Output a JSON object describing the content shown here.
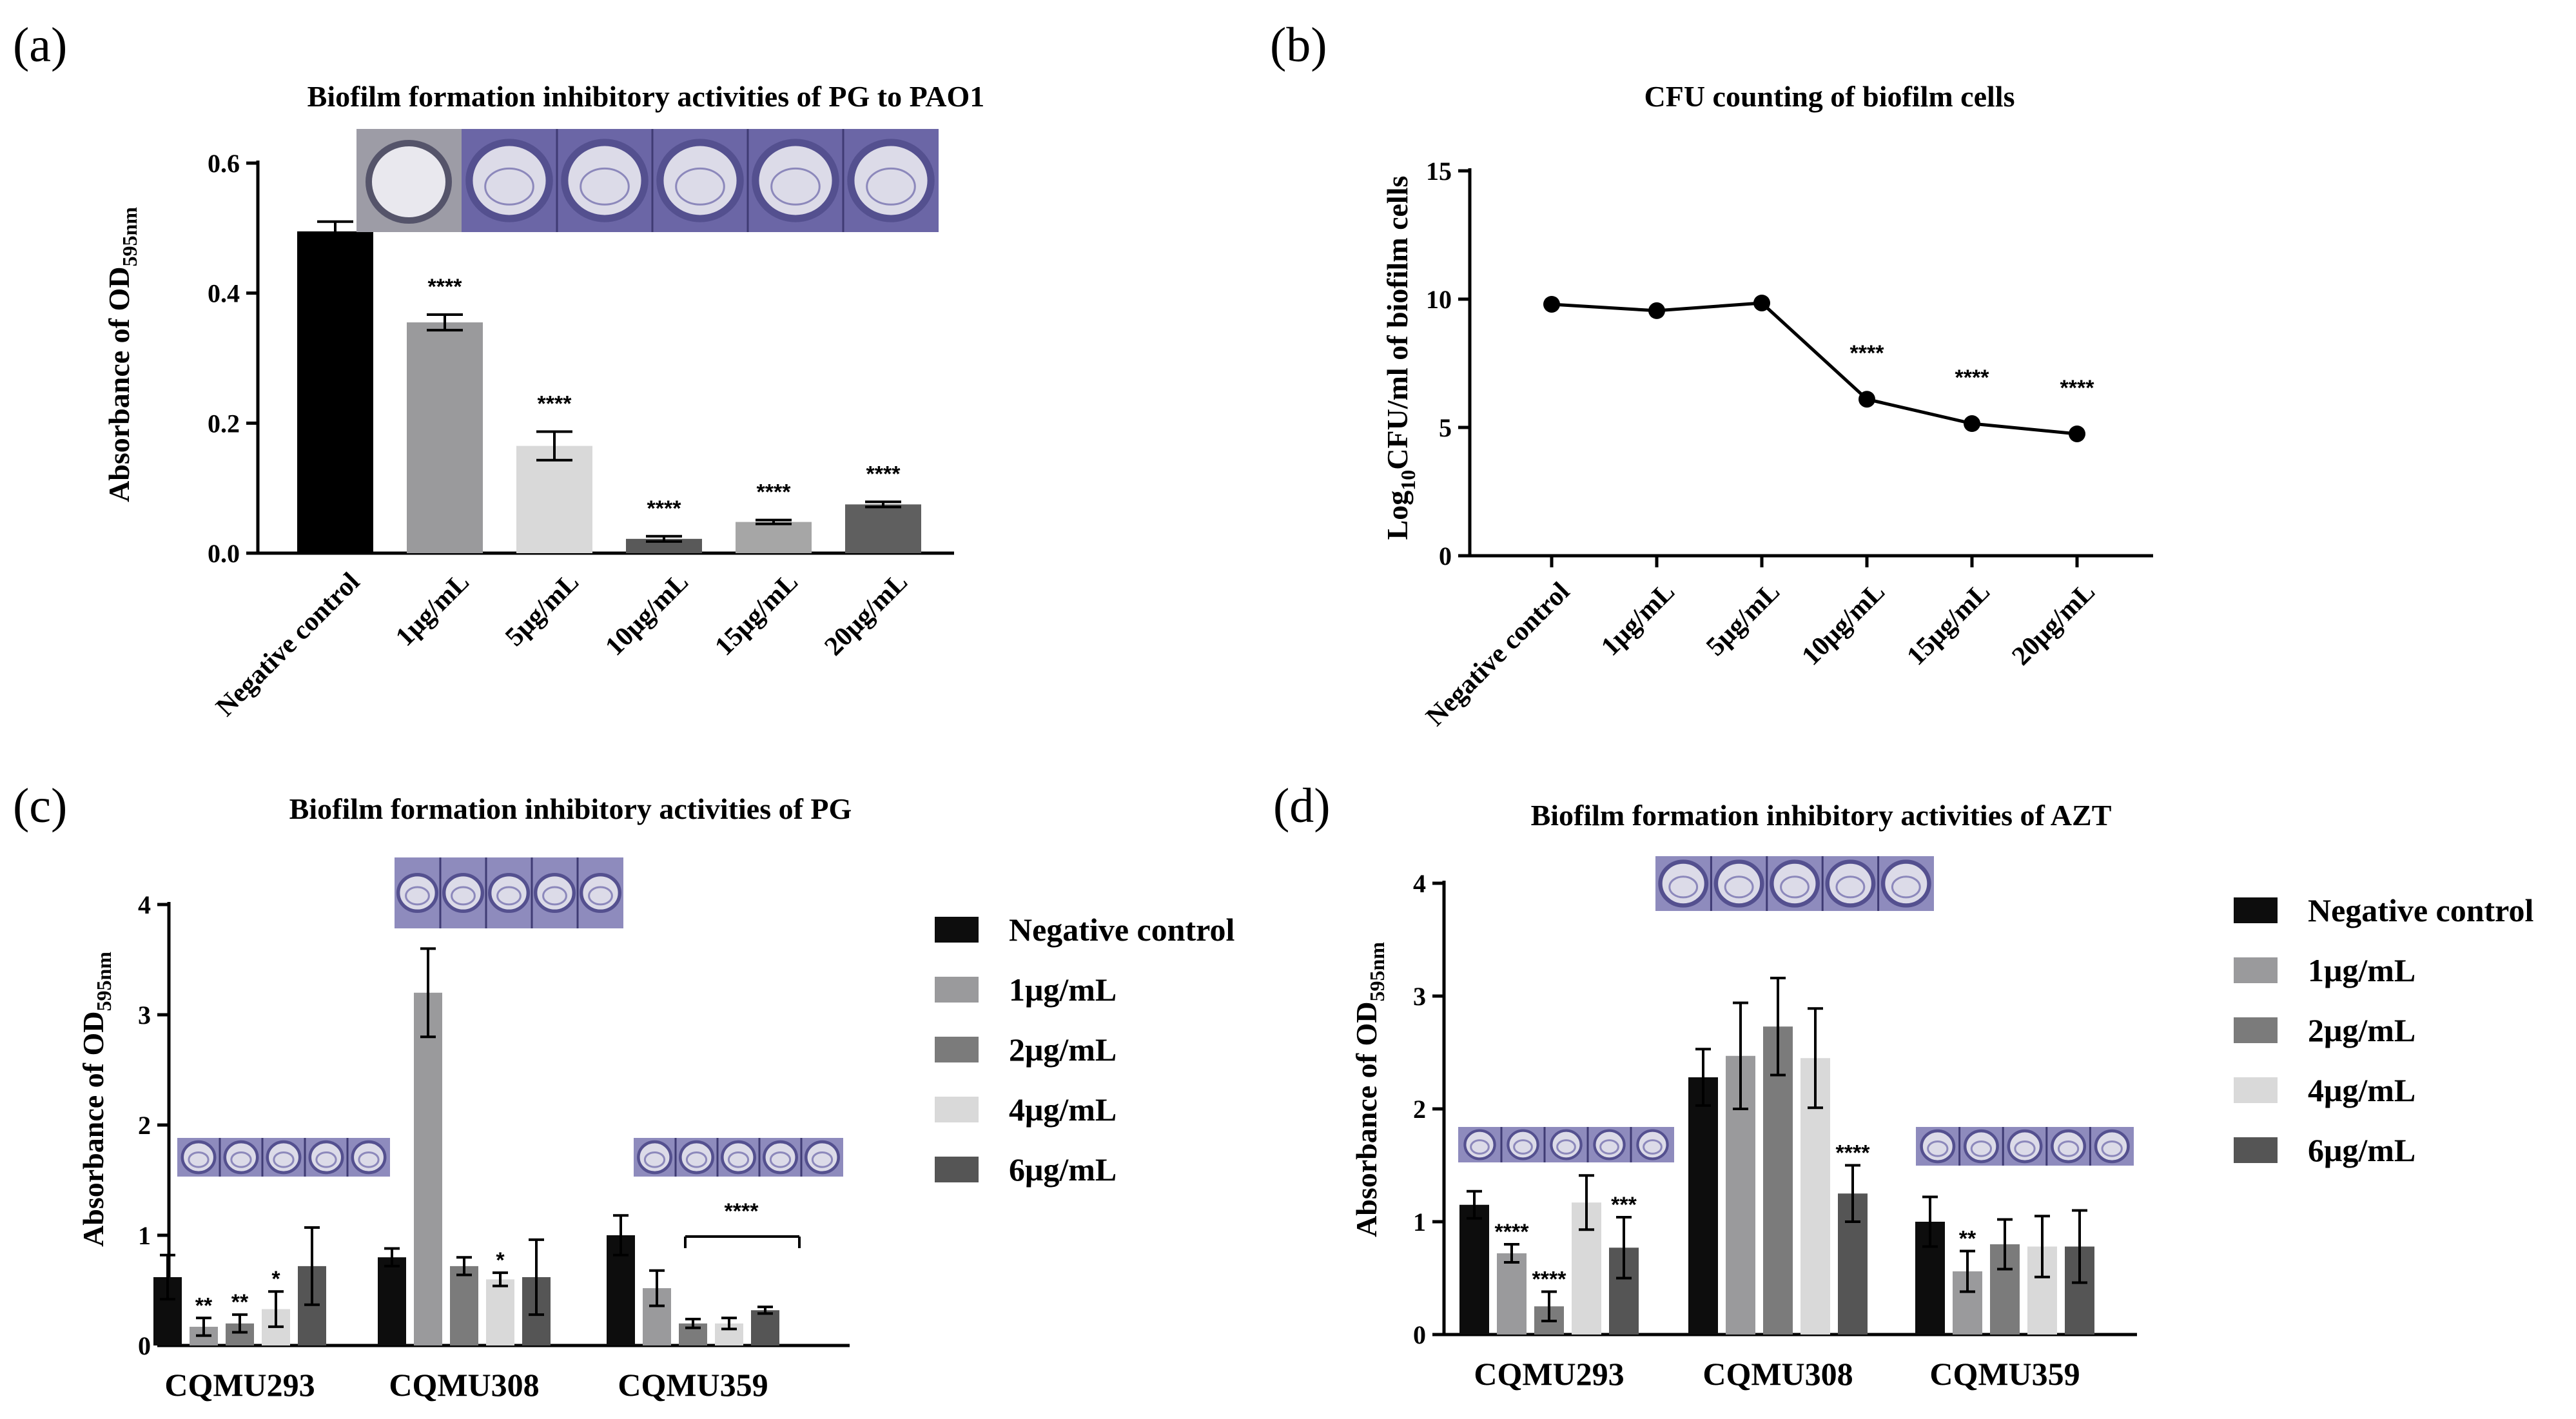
{
  "colors": {
    "negative": "#0d0d0d",
    "c1": "#9a9a9c",
    "c2": "#7b7b7b",
    "c4": "#d9d9d9",
    "c6": "#555555",
    "a_bars": [
      "#000000",
      "#9a9a9c",
      "#d9d9d9",
      "#595959",
      "#a6a6a6",
      "#5f5f5f"
    ],
    "well_purple": "#54508f",
    "well_light": "#dcdbe8"
  },
  "chart_data": [
    {
      "panel": "(a)",
      "type": "bar",
      "title": "Biofilm formation inhibitory activities of PG to PAO1",
      "ylabel": "Absorbance of OD",
      "ylabel_sub": "595nm",
      "xlabel": "",
      "ylim": [
        0,
        0.6
      ],
      "yticks": [
        "0.0",
        "0.2",
        "0.4",
        "0.6"
      ],
      "yticks_values": [
        0,
        0.2,
        0.4,
        0.6
      ],
      "categories": [
        "Negative control",
        "1μg/mL",
        "5μg/mL",
        "10μg/mL",
        "15μg/mL",
        "20μg/mL"
      ],
      "values": [
        0.495,
        0.355,
        0.165,
        0.022,
        0.048,
        0.075
      ],
      "errors": [
        0.015,
        0.012,
        0.022,
        0.004,
        0.003,
        0.004
      ],
      "significance": [
        "",
        "****",
        "****",
        "****",
        "****",
        "****"
      ]
    },
    {
      "panel": "(b)",
      "type": "line",
      "title": "CFU counting of biofilm cells",
      "ylabel_parts": [
        "Log",
        "10",
        "CFU/ml of biofilm cells"
      ],
      "xlabel": "",
      "ylim": [
        0,
        15
      ],
      "yticks": [
        "0",
        "5",
        "10",
        "15"
      ],
      "yticks_values": [
        0,
        5,
        10,
        15
      ],
      "categories": [
        "Negative control",
        "1μg/mL",
        "5μg/mL",
        "10μg/mL",
        "15μg/mL",
        "20μg/mL"
      ],
      "values": [
        9.8,
        9.55,
        9.85,
        6.1,
        5.15,
        4.75
      ],
      "significance": [
        "",
        "",
        "",
        "****",
        "****",
        "****"
      ]
    },
    {
      "panel": "(c)",
      "type": "bar",
      "title": "Biofilm formation inhibitory activities of PG",
      "ylabel": "Absorbance of OD",
      "ylabel_sub": "595nm",
      "xlabel": "",
      "ylim": [
        0,
        4
      ],
      "yticks": [
        "0",
        "1",
        "2",
        "3",
        "4"
      ],
      "yticks_values": [
        0,
        1,
        2,
        3,
        4
      ],
      "categories": [
        "CQMU293",
        "CQMU308",
        "CQMU359"
      ],
      "series": [
        {
          "name": "Negative control",
          "values": [
            0.62,
            0.8,
            1.0
          ],
          "errors": [
            0.2,
            0.08,
            0.18
          ],
          "significance": [
            "",
            "",
            ""
          ]
        },
        {
          "name": "1μg/mL",
          "values": [
            0.17,
            3.2,
            0.52
          ],
          "errors": [
            0.08,
            0.4,
            0.16
          ],
          "significance": [
            "**",
            "",
            ""
          ]
        },
        {
          "name": "2μg/mL",
          "values": [
            0.2,
            0.72,
            0.2
          ],
          "errors": [
            0.08,
            0.08,
            0.04
          ],
          "significance": [
            "**",
            "",
            ""
          ]
        },
        {
          "name": "4μg/mL",
          "values": [
            0.33,
            0.6,
            0.2
          ],
          "errors": [
            0.16,
            0.06,
            0.05
          ],
          "significance": [
            "*",
            "*",
            ""
          ]
        },
        {
          "name": "6μg/mL",
          "values": [
            0.72,
            0.62,
            0.32
          ],
          "errors": [
            0.35,
            0.34,
            0.03
          ],
          "significance": [
            "",
            "",
            ""
          ]
        }
      ],
      "bracket_label": "****"
    },
    {
      "panel": "(d)",
      "type": "bar",
      "title": "Biofilm formation inhibitory activities of AZT",
      "ylabel": "Absorbance of OD",
      "ylabel_sub": "595nm",
      "xlabel": "",
      "ylim": [
        0,
        4
      ],
      "yticks": [
        "0",
        "1",
        "2",
        "3",
        "4"
      ],
      "yticks_values": [
        0,
        1,
        2,
        3,
        4
      ],
      "categories": [
        "CQMU293",
        "CQMU308",
        "CQMU359"
      ],
      "series": [
        {
          "name": "Negative control",
          "values": [
            1.15,
            2.28,
            1.0
          ],
          "errors": [
            0.12,
            0.25,
            0.22
          ],
          "significance": [
            "",
            "",
            ""
          ]
        },
        {
          "name": "1μg/mL",
          "values": [
            0.72,
            2.47,
            0.56
          ],
          "errors": [
            0.08,
            0.47,
            0.18
          ],
          "significance": [
            "****",
            "",
            "**"
          ]
        },
        {
          "name": "2μg/mL",
          "values": [
            0.25,
            2.73,
            0.8
          ],
          "errors": [
            0.13,
            0.43,
            0.22
          ],
          "significance": [
            "****",
            "",
            ""
          ]
        },
        {
          "name": "4μg/mL",
          "values": [
            1.17,
            2.45,
            0.78
          ],
          "errors": [
            0.24,
            0.44,
            0.27
          ],
          "significance": [
            "",
            "",
            ""
          ]
        },
        {
          "name": "6μg/mL",
          "values": [
            0.77,
            1.25,
            0.78
          ],
          "errors": [
            0.27,
            0.25,
            0.32
          ],
          "significance": [
            "***",
            "****",
            ""
          ]
        }
      ]
    }
  ]
}
